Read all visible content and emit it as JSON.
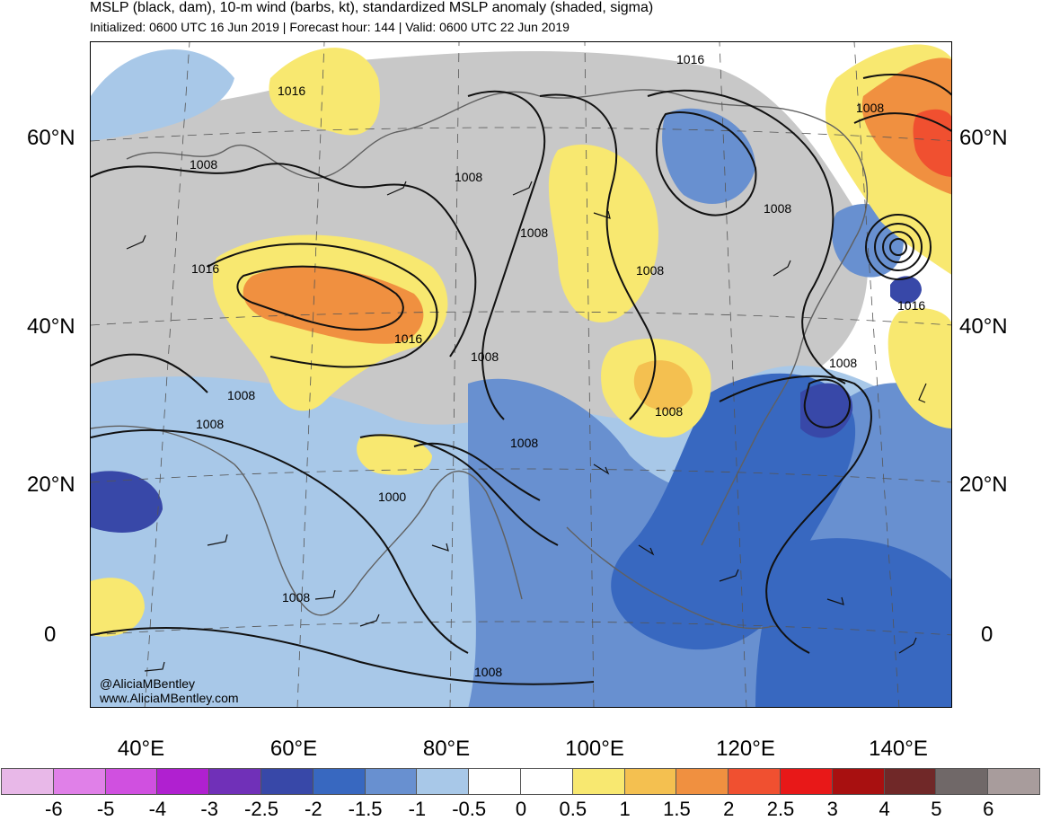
{
  "header": {
    "title": "MSLP (black, dam), 10-m wind (barbs, kt), standardized MSLP anomaly (shaded, sigma)",
    "subtitle": "Initialized: 0600 UTC 16 Jun 2019 | Forecast hour: 144 | Valid: 0600 UTC 22 Jun 2019"
  },
  "axes": {
    "lat_labels": [
      "60°N",
      "40°N",
      "20°N",
      "0"
    ],
    "lon_labels": [
      "40°E",
      "60°E",
      "80°E",
      "100°E",
      "120°E",
      "140°E"
    ]
  },
  "contour_labels": [
    "1016",
    "1008",
    "1008",
    "1016",
    "1008",
    "1008",
    "1016",
    "1008",
    "1008",
    "1008",
    "1008",
    "1008",
    "1016",
    "1016",
    "1008",
    "1000",
    "1008",
    "1008",
    "1008",
    "1008"
  ],
  "credit": {
    "handle": "@AliciaMBentley",
    "site": "www.AliciaMBentley.com"
  },
  "colorbar": {
    "colors": [
      "#e8b8e8",
      "#e080e8",
      "#d050e0",
      "#b020d0",
      "#7030b8",
      "#3848a8",
      "#3868c0",
      "#6890d0",
      "#a8c8e8",
      "#ffffff",
      "#ffffff",
      "#f8e870",
      "#f4c050",
      "#f09040",
      "#f05030",
      "#e81818",
      "#a81010",
      "#702828",
      "#706868",
      "#a89c9c"
    ],
    "labels": [
      "-6",
      "-5",
      "-4",
      "-3",
      "-2.5",
      "-2",
      "-1.5",
      "-1",
      "-0.5",
      "0",
      "0.5",
      "1",
      "1.5",
      "2",
      "2.5",
      "3",
      "4",
      "5",
      "6"
    ]
  }
}
